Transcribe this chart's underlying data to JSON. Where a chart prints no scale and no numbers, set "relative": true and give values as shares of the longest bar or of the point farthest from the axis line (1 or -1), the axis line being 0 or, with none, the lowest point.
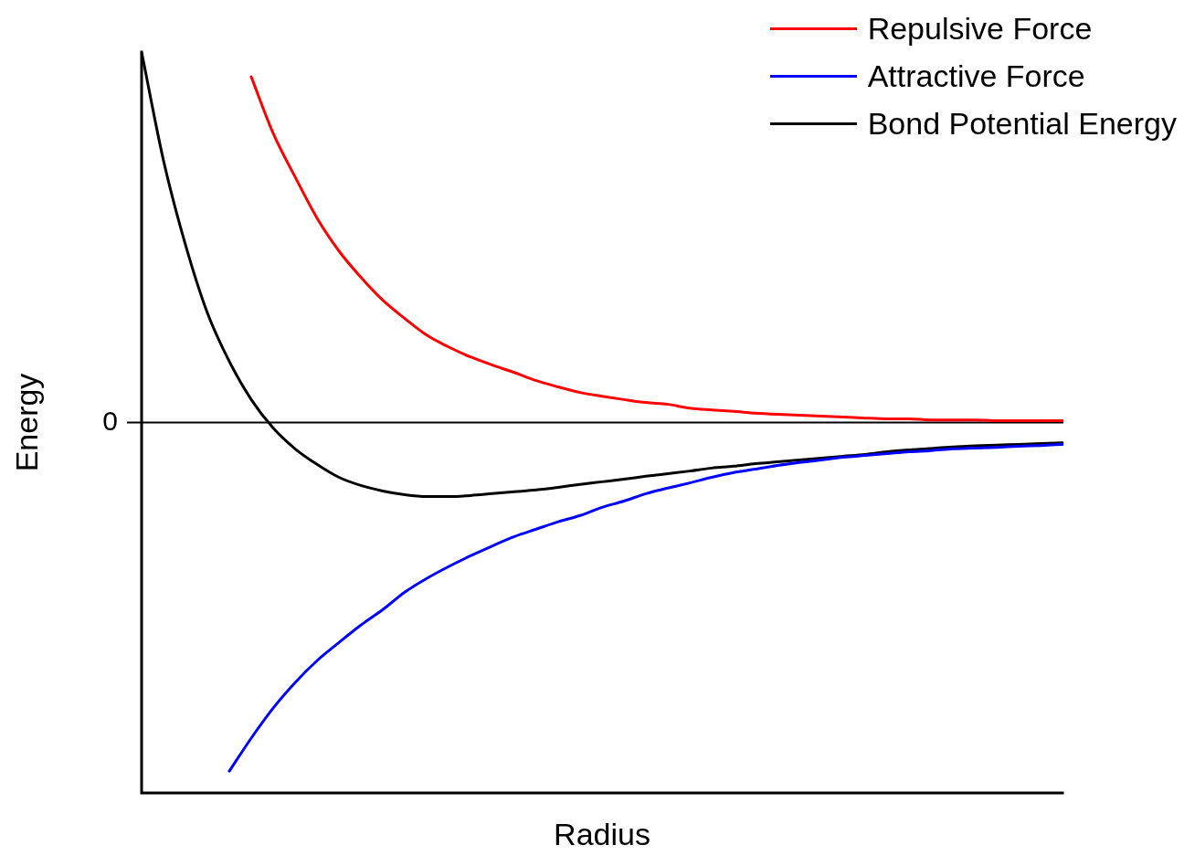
{
  "chart_data": {
    "type": "line",
    "xlabel": "Radius",
    "ylabel": "Energy",
    "relative": true,
    "legend": "top right",
    "marker": "none",
    "line_style": "solid",
    "categories": [
      null,
      null,
      null,
      null,
      null,
      null,
      null,
      null,
      null,
      null,
      null,
      null,
      null,
      null,
      null,
      null,
      null,
      null,
      null,
      null,
      null,
      null,
      null,
      null,
      null,
      null,
      null,
      null,
      null,
      null,
      null,
      null,
      null,
      null,
      null,
      null,
      null,
      null,
      null,
      null,
      null,
      null,
      null
    ],
    "ref_lines": [
      {
        "axis": "y",
        "value": 0,
        "label": "0",
        "color": "#000000"
      }
    ],
    "series": [
      {
        "name": "Repulsive Force",
        "color": "#ff0000",
        "values": [
          null,
          null,
          null,
          null,
          null,
          0.933,
          0.781,
          0.663,
          0.552,
          0.463,
          0.392,
          0.33,
          0.281,
          0.236,
          0.204,
          0.177,
          0.155,
          0.135,
          0.113,
          0.096,
          0.081,
          0.071,
          0.062,
          0.054,
          0.049,
          0.039,
          0.034,
          0.03,
          0.025,
          0.022,
          0.02,
          0.017,
          0.015,
          0.012,
          0.01,
          0.01,
          0.007,
          0.007,
          0.007,
          0.005,
          0.005,
          0.005,
          0.005
        ]
      },
      {
        "name": "Attractive Force",
        "color": "#0000ff",
        "values": [
          null,
          null,
          null,
          null,
          -0.941,
          -0.852,
          -0.771,
          -0.702,
          -0.643,
          -0.594,
          -0.547,
          -0.505,
          -0.458,
          -0.421,
          -0.389,
          -0.36,
          -0.333,
          -0.308,
          -0.288,
          -0.268,
          -0.251,
          -0.229,
          -0.212,
          -0.192,
          -0.177,
          -0.163,
          -0.148,
          -0.135,
          -0.126,
          -0.116,
          -0.108,
          -0.101,
          -0.094,
          -0.089,
          -0.084,
          -0.079,
          -0.076,
          -0.071,
          -0.069,
          -0.067,
          -0.064,
          -0.062,
          -0.059
        ]
      },
      {
        "name": "Bond Potential Energy",
        "color": "#000000",
        "values": [
          1.0,
          0.707,
          0.48,
          0.296,
          0.165,
          0.062,
          -0.015,
          -0.071,
          -0.113,
          -0.148,
          -0.17,
          -0.185,
          -0.195,
          -0.2,
          -0.2,
          -0.197,
          -0.192,
          -0.187,
          -0.182,
          -0.175,
          -0.167,
          -0.16,
          -0.153,
          -0.145,
          -0.138,
          -0.131,
          -0.123,
          -0.118,
          -0.111,
          -0.106,
          -0.101,
          -0.096,
          -0.091,
          -0.086,
          -0.079,
          -0.074,
          -0.07,
          -0.066,
          -0.063,
          -0.061,
          -0.059,
          -0.057,
          -0.055
        ]
      }
    ]
  }
}
